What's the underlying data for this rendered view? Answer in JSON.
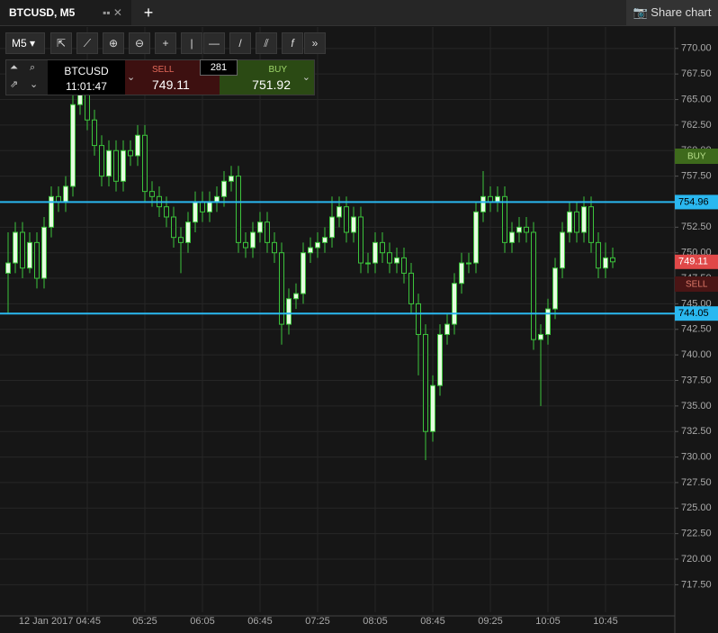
{
  "ui": {
    "tab_title": "BTCUSD, M5",
    "share": "Share chart",
    "timeframe": "M5",
    "symbol": "BTCUSD",
    "clock": "11:01:47",
    "sell_label": "SELL",
    "sell_price": "749.11",
    "spread": "281",
    "buy_label": "BUY",
    "buy_price": "751.92"
  },
  "chart_data": {
    "type": "candlestick",
    "categories": [
      null,
      null,
      null,
      null,
      null,
      null,
      null,
      null,
      null,
      null,
      null,
      "12 Jan 2017 04:45",
      null,
      null,
      null,
      null,
      null,
      null,
      null,
      "05:25",
      null,
      null,
      null,
      null,
      null,
      null,
      null,
      "06:05",
      null,
      null,
      null,
      null,
      null,
      null,
      null,
      "06:45",
      null,
      null,
      null,
      null,
      null,
      null,
      null,
      "07:25",
      null,
      null,
      null,
      null,
      null,
      null,
      null,
      "08:05",
      null,
      null,
      null,
      null,
      null,
      null,
      null,
      "08:45",
      null,
      null,
      null,
      null,
      null,
      null,
      null,
      "09:25",
      null,
      null,
      null,
      null,
      null,
      null,
      null,
      "10:05",
      null,
      null,
      null,
      null,
      null,
      null,
      null,
      "10:45",
      null
    ],
    "open": [
      748,
      749,
      752,
      748.5,
      751,
      747.5,
      752.5,
      755.5,
      755,
      756.5,
      764.5,
      765.5,
      763,
      760.5,
      757.5,
      760,
      757,
      760,
      759.5,
      761.5,
      756,
      755.5,
      754.5,
      753.5,
      751.5,
      751,
      753,
      755,
      754,
      755,
      755.5,
      757,
      757.5,
      751,
      750.5,
      752,
      753,
      751,
      750,
      743,
      745.5,
      746,
      750,
      750.5,
      751,
      751.5,
      753.5,
      754.5,
      752,
      753.5,
      749,
      749,
      751,
      750,
      749,
      749.5,
      748,
      745,
      742,
      732.5,
      737,
      742,
      743,
      747,
      749,
      749,
      754,
      755.5,
      755,
      755.5,
      751,
      752,
      752.5,
      752,
      741.5,
      742,
      744.5,
      748.5,
      752,
      754,
      752,
      754.5,
      751,
      748.5,
      749.5
    ],
    "high": [
      752,
      753,
      753,
      752,
      752,
      753.5,
      756.5,
      756.5,
      757.5,
      768.8,
      766.5,
      766.5,
      764,
      761.5,
      761,
      761,
      761,
      761,
      762.5,
      762.5,
      757,
      756.5,
      755.5,
      754.5,
      752.5,
      754,
      756,
      756,
      756,
      756.5,
      758,
      758.5,
      758.5,
      752,
      753,
      754,
      754,
      752,
      751,
      746.5,
      747,
      751,
      751.5,
      752,
      752.5,
      755.5,
      755.5,
      755.5,
      754.5,
      754.5,
      750,
      752,
      752,
      751,
      750.5,
      750.5,
      749,
      746,
      743,
      738,
      743,
      744,
      748,
      750,
      750,
      755,
      758,
      756.5,
      756.5,
      756.5,
      753,
      753.5,
      753.5,
      753,
      743,
      745.5,
      749.5,
      753,
      755,
      755,
      755.5,
      755.5,
      752,
      751,
      750.5
    ],
    "low": [
      744,
      748,
      747.5,
      748,
      746.5,
      746.5,
      751.5,
      754,
      754,
      755.5,
      763.5,
      762,
      759.5,
      756.5,
      756.5,
      756,
      756,
      758.5,
      758.5,
      755,
      754.5,
      753.5,
      752.5,
      750.5,
      748,
      750,
      752,
      753,
      753,
      754,
      754.5,
      756,
      750,
      749.5,
      749.5,
      751,
      750,
      749,
      741,
      742,
      744.5,
      745,
      749,
      749.5,
      750,
      750.5,
      752.5,
      751,
      751,
      748,
      748,
      748,
      749,
      748,
      748,
      747,
      744,
      738,
      729.7,
      731.5,
      736,
      741,
      742,
      746,
      748,
      748,
      753,
      754,
      754,
      750,
      750,
      751,
      751,
      740.5,
      735,
      741,
      743.5,
      747.5,
      751,
      751,
      751,
      750,
      747.5,
      747.5,
      748.5
    ],
    "close": [
      749,
      752,
      748.5,
      751,
      747.5,
      752.5,
      755.5,
      755,
      756.5,
      764.5,
      765.5,
      763,
      760.5,
      757.5,
      760,
      757,
      760,
      759.5,
      761.5,
      756,
      755.5,
      754.5,
      753.5,
      751.5,
      751,
      753,
      755,
      754,
      755,
      755.5,
      757,
      757.5,
      751,
      750.5,
      752,
      753,
      751,
      750,
      743,
      745.5,
      746,
      750,
      750.5,
      751,
      751.5,
      753.5,
      754.5,
      752,
      753.5,
      749,
      749,
      751,
      750,
      749,
      749.5,
      748,
      745,
      742,
      732.5,
      737,
      742,
      743,
      747,
      749,
      749,
      754,
      755.5,
      755,
      755.5,
      751,
      752,
      752.5,
      752,
      741.5,
      742,
      744.5,
      748.5,
      752,
      754,
      752,
      754.5,
      751,
      748.5,
      749.5,
      749.11
    ],
    "up_color": "#e6fbe0",
    "down_color": "#161616",
    "wick_color": "#3cc43c",
    "ylim": [
      714.8,
      772.1
    ],
    "yticks": [
      {
        "value": 770,
        "label": "770.00"
      },
      {
        "value": 767.5,
        "label": "767.50"
      },
      {
        "value": 765,
        "label": "765.00"
      },
      {
        "value": 762.5,
        "label": "762.50"
      },
      {
        "value": 760,
        "label": "760.00"
      },
      {
        "value": 757.5,
        "label": "757.50"
      },
      {
        "value": 755,
        "label": "755.00"
      },
      {
        "value": 752.5,
        "label": "752.50"
      },
      {
        "value": 750,
        "label": "750.00"
      },
      {
        "value": 747.5,
        "label": "747.50"
      },
      {
        "value": 745,
        "label": "745.00"
      },
      {
        "value": 742.5,
        "label": "742.50"
      },
      {
        "value": 740,
        "label": "740.00"
      },
      {
        "value": 737.5,
        "label": "737.50"
      },
      {
        "value": 735,
        "label": "735.00"
      },
      {
        "value": 732.5,
        "label": "732.50"
      },
      {
        "value": 730,
        "label": "730.00"
      },
      {
        "value": 727.5,
        "label": "727.50"
      },
      {
        "value": 725,
        "label": "725.00"
      },
      {
        "value": 722.5,
        "label": "722.50"
      },
      {
        "value": 720,
        "label": "720.00"
      },
      {
        "value": 717.5,
        "label": "717.50"
      }
    ],
    "grid": true,
    "levels": [
      754.96,
      744.05
    ],
    "level_color": "#2ab8f0",
    "last_price": 749.11,
    "last_color": "#e04848",
    "buy_tag": "BUY",
    "sell_tag": "SELL"
  }
}
